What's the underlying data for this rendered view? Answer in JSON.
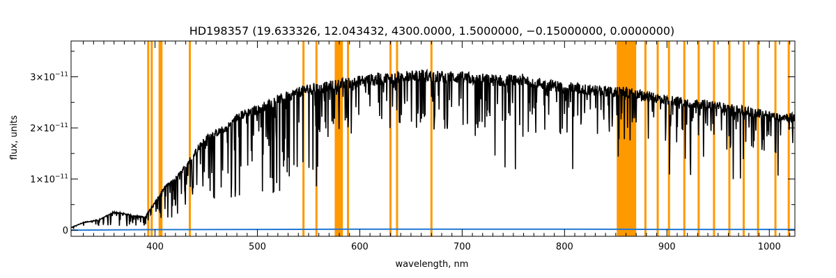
{
  "chart_data": {
    "type": "line",
    "title": "HD198357   (19.633326, 12.043432, 4300.0000, 1.5000000, −0.15000000, 0.0000000)",
    "xlabel": "wavelength, nm",
    "ylabel": "flux, units",
    "xlim": [
      318,
      1025
    ],
    "ylim": [
      -1.2e-12,
      3.7e-11
    ],
    "grid": false,
    "x_ticks": [
      {
        "value": 400,
        "label": "400"
      },
      {
        "value": 500,
        "label": "500"
      },
      {
        "value": 600,
        "label": "600"
      },
      {
        "value": 700,
        "label": "700"
      },
      {
        "value": 800,
        "label": "800"
      },
      {
        "value": 900,
        "label": "900"
      },
      {
        "value": 1000,
        "label": "1000"
      }
    ],
    "y_ticks": [
      {
        "value": 0,
        "mantissa": "0",
        "exponent": ""
      },
      {
        "value": 1e-11,
        "mantissa": "1×10",
        "exponent": "−11"
      },
      {
        "value": 2e-11,
        "mantissa": "2×10",
        "exponent": "−11"
      },
      {
        "value": 3e-11,
        "mantissa": "3×10",
        "exponent": "−11"
      }
    ],
    "colors": {
      "flux": "#000000",
      "error": "#1f77d4",
      "masked": "#ff9900"
    },
    "series": [
      {
        "role": "flux",
        "x": [
          318,
          330,
          345,
          360,
          375,
          390,
          400,
          410,
          420,
          430,
          440,
          450,
          460,
          470,
          480,
          490,
          500,
          510,
          520,
          530,
          540,
          550,
          560,
          570,
          580,
          590,
          600,
          620,
          640,
          660,
          680,
          700,
          720,
          740,
          760,
          780,
          800,
          820,
          840,
          852,
          860,
          870,
          880,
          900,
          920,
          940,
          960,
          980,
          1000,
          1025
        ],
        "y": [
          5e-13,
          1.5e-12,
          2e-12,
          3.5e-12,
          3e-12,
          2.5e-12,
          5.5e-12,
          8.5e-12,
          1e-11,
          1.25e-11,
          1.55e-11,
          1.8e-11,
          1.9e-11,
          2e-11,
          2.2e-11,
          2.3e-11,
          2.35e-11,
          2.45e-11,
          2.55e-11,
          2.62e-11,
          2.7e-11,
          2.75e-11,
          2.78e-11,
          2.8e-11,
          2.85e-11,
          2.88e-11,
          2.92e-11,
          2.96e-11,
          3e-11,
          3.02e-11,
          3e-11,
          2.98e-11,
          2.95e-11,
          2.92e-11,
          2.95e-11,
          2.85e-11,
          2.8e-11,
          2.75e-11,
          2.72e-11,
          2.7e-11,
          2.7e-11,
          2.65e-11,
          2.62e-11,
          2.55e-11,
          2.5e-11,
          2.45e-11,
          2.38e-11,
          2.32e-11,
          2.25e-11,
          2.2e-11
        ]
      },
      {
        "role": "error",
        "x": [
          318,
          400,
          500,
          600,
          700,
          800,
          900,
          1000,
          1025
        ],
        "y": [
          0.0,
          1e-13,
          1.5e-13,
          2e-13,
          2e-13,
          2e-13,
          1.5e-13,
          1.5e-13,
          1.5e-13
        ]
      }
    ],
    "masked_lines": [
      393.4,
      396.8,
      404.5,
      406.3,
      434.0,
      545.0,
      557.7,
      588.5,
      630.0,
      636.4,
      670.0,
      879.0,
      891.0,
      902.0,
      917.0,
      931.0,
      946.0,
      961.0,
      975.0,
      989.0,
      1006.0,
      1019.0
    ],
    "masked_bands": [
      [
        575.5,
        583.5
      ],
      [
        851.0,
        870.0
      ]
    ]
  }
}
